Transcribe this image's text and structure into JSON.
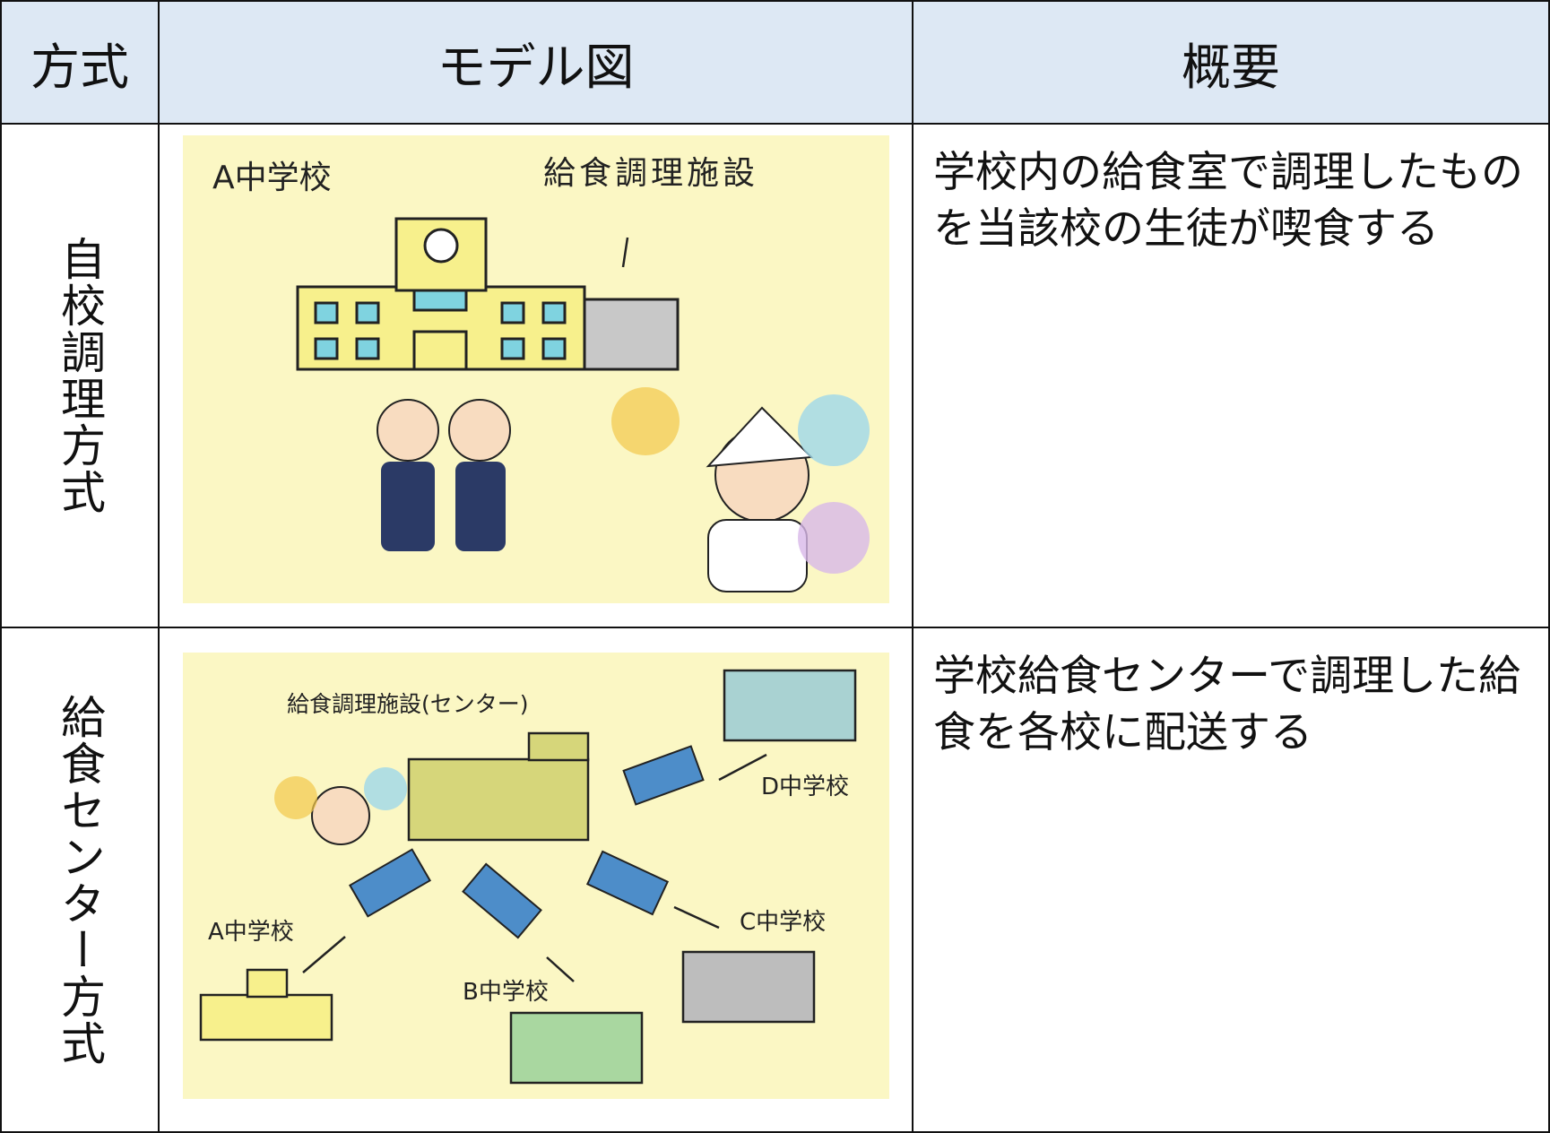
{
  "table": {
    "headers": [
      "方式",
      "モデル図",
      "概要"
    ],
    "rows": [
      {
        "method": "自校調理方式",
        "figure": {
          "labels": [
            "A中学校",
            "給食調理施設"
          ]
        },
        "overview": "学校内の給食室で調理したものを当該校の生徒が喫食する"
      },
      {
        "method": "給食センター方式",
        "figure": {
          "labels": [
            "給食調理施設(センター)",
            "D中学校",
            "A中学校",
            "B中学校",
            "C中学校"
          ]
        },
        "overview": "学校給食センターで調理した給食を各校に配送する"
      }
    ]
  }
}
